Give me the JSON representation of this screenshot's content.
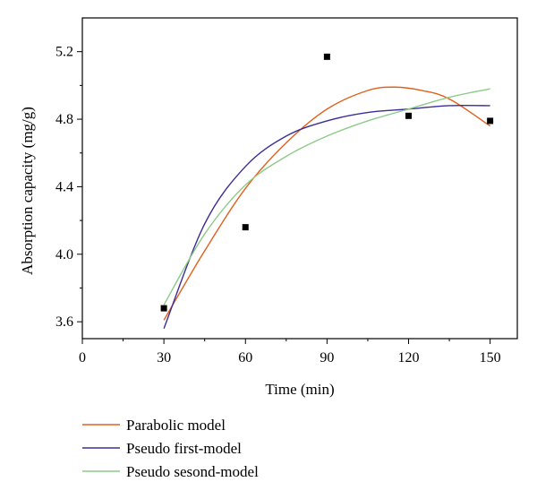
{
  "chart_data": {
    "type": "scatter",
    "title": "",
    "xlabel": "Time (min)",
    "ylabel": "Absorption capacity (mg/g)",
    "xlim": [
      0,
      160
    ],
    "ylim": [
      3.5,
      5.4
    ],
    "xticks": [
      0,
      30,
      60,
      90,
      120,
      150
    ],
    "yticks": [
      3.6,
      4.0,
      4.4,
      4.8,
      5.2
    ],
    "x_tick_labels": [
      "0",
      "30",
      "60",
      "90",
      "120",
      "150"
    ],
    "y_tick_labels": [
      "3.6",
      "4.0",
      "4.4",
      "4.8",
      "5.2"
    ],
    "grid": false,
    "legend_position": "bottom",
    "points": {
      "x": [
        30,
        60,
        90,
        120,
        150
      ],
      "y": [
        3.68,
        4.16,
        5.17,
        4.82,
        4.79
      ],
      "color": "#000000"
    },
    "series": [
      {
        "name": "Parabolic model",
        "color": "#e0601c",
        "x": [
          30,
          45,
          60,
          75,
          90,
          105,
          115,
          125,
          135,
          150
        ],
        "y": [
          3.61,
          4.02,
          4.39,
          4.66,
          4.86,
          4.97,
          4.99,
          4.97,
          4.92,
          4.76
        ]
      },
      {
        "name": "Pseudo first-model",
        "color": "#3d2d96",
        "x": [
          30,
          45,
          60,
          75,
          90,
          105,
          120,
          135,
          150
        ],
        "y": [
          3.56,
          4.18,
          4.52,
          4.7,
          4.79,
          4.84,
          4.86,
          4.88,
          4.88
        ]
      },
      {
        "name": "Pseudo sesond-model",
        "color": "#8ccb88",
        "x": [
          30,
          45,
          60,
          75,
          90,
          105,
          120,
          135,
          150
        ],
        "y": [
          3.7,
          4.12,
          4.41,
          4.58,
          4.7,
          4.79,
          4.86,
          4.93,
          4.98
        ]
      }
    ]
  }
}
